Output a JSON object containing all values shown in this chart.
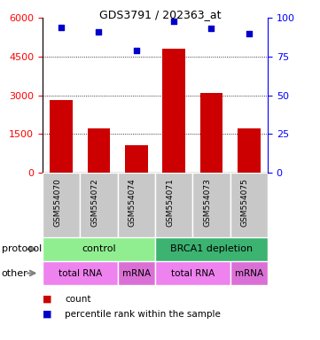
{
  "title": "GDS3791 / 202363_at",
  "samples": [
    "GSM554070",
    "GSM554072",
    "GSM554074",
    "GSM554071",
    "GSM554073",
    "GSM554075"
  ],
  "counts": [
    2800,
    1700,
    1050,
    4800,
    3100,
    1700
  ],
  "percentile_pct": [
    94,
    91,
    79,
    98,
    93,
    90
  ],
  "ylim_left": [
    0,
    6000
  ],
  "ylim_right": [
    0,
    100
  ],
  "yticks_left": [
    0,
    1500,
    3000,
    4500,
    6000
  ],
  "yticks_right": [
    0,
    25,
    50,
    75,
    100
  ],
  "bar_color": "#cc0000",
  "dot_color": "#0000cc",
  "protocol_row": [
    {
      "label": "control",
      "span": [
        0,
        3
      ],
      "color": "#90EE90"
    },
    {
      "label": "BRCA1 depletion",
      "span": [
        3,
        6
      ],
      "color": "#3CB371"
    }
  ],
  "other_row": [
    {
      "label": "total RNA",
      "span": [
        0,
        2
      ],
      "color": "#EE82EE"
    },
    {
      "label": "mRNA",
      "span": [
        2,
        3
      ],
      "color": "#DA70D6"
    },
    {
      "label": "total RNA",
      "span": [
        3,
        5
      ],
      "color": "#EE82EE"
    },
    {
      "label": "mRNA",
      "span": [
        5,
        6
      ],
      "color": "#DA70D6"
    }
  ],
  "sample_box_color": "#C8C8C8",
  "fig_width": 3.61,
  "fig_height": 3.84,
  "dpi": 100
}
